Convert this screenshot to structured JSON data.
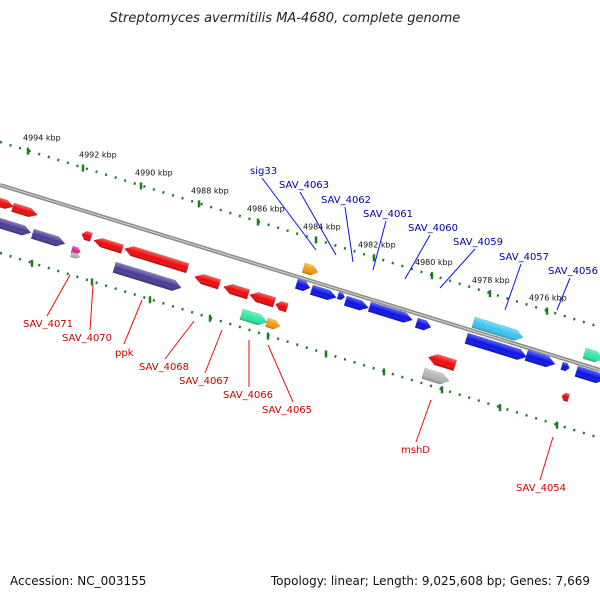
{
  "title": "Streptomyces avermitilis MA-4680, complete genome",
  "footer": {
    "accession": "Accession: NC_003155",
    "summary": "Topology: linear; Length: 9,025,608 bp; Genes: 7,669"
  },
  "colors": {
    "blue": "#0a14e6",
    "red": "#ee0a0a",
    "navy": "#4a3c96",
    "cyan": "#3cc6ee",
    "green": "#30e6a2",
    "orange": "#f49a10",
    "gray": "#b4b4b4",
    "magenta": "#e0209a",
    "backbone": "#8a8a8a",
    "tick": "#1e7a1e"
  },
  "kbp_ticks": [
    "4994 kbp",
    "4992 kbp",
    "4990 kbp",
    "4988 kbp",
    "4986 kbp",
    "4984 kbp",
    "4982 kbp",
    "4980 kbp",
    "4978 kbp",
    "4976 kbp"
  ],
  "labels_top": [
    "sig33",
    "SAV_4063",
    "SAV_4062",
    "SAV_4061",
    "SAV_4060",
    "SAV_4059",
    "SAV_4057",
    "SAV_4056"
  ],
  "labels_bottom": [
    "SAV_4071",
    "SAV_4070",
    "ppk",
    "SAV_4068",
    "SAV_4067",
    "SAV_4066",
    "SAV_4065",
    "mshD",
    "SAV_4054"
  ]
}
